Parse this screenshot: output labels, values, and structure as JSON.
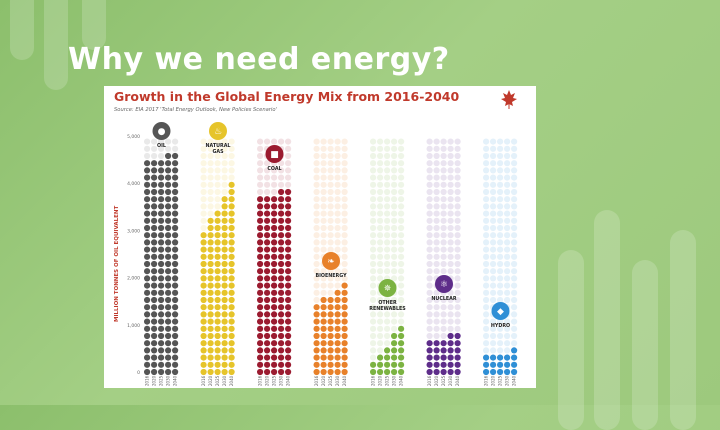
{
  "slide": {
    "title": "Why we need energy?"
  },
  "colors": {
    "background": "#9dc97d",
    "title": "#ffffff",
    "header": "#c0392b"
  },
  "icons": [
    "maple-leaf-icon",
    "oil-drop-icon",
    "flame-icon",
    "coal-icon",
    "leaf-icon",
    "sun-wind-icon",
    "atom-icon",
    "water-drop-icon"
  ],
  "chart_data": {
    "type": "bar",
    "title": "Growth in the Global Energy Mix from 2016-2040",
    "subtitle": "Source: EIA 2017 'Total Energy Outlook, New Policies Scenario'",
    "ylabel": "MILLION TONNES OF OIL EQUIVALENT",
    "yticks": [
      "5,000",
      "4,000",
      "3,000",
      "2,000",
      "1,000",
      "0"
    ],
    "ylim": [
      0,
      5000
    ],
    "grid": false,
    "series": [
      {
        "name": "OIL",
        "color": "#555555",
        "values": [
          4500,
          4520,
          4550,
          4580,
          4600
        ]
      },
      {
        "name": "NATURAL GAS",
        "color": "#e6c42a",
        "values": [
          3000,
          3250,
          3500,
          3750,
          4000
        ]
      },
      {
        "name": "COAL",
        "color": "#9b1b30",
        "values": [
          3800,
          3800,
          3810,
          3820,
          3830
        ]
      },
      {
        "name": "BIOENERGY",
        "color": "#e8812a",
        "values": [
          1450,
          1550,
          1650,
          1750,
          1850
        ]
      },
      {
        "name": "OTHER RENEWABLES",
        "color": "#7cb342",
        "values": [
          250,
          400,
          600,
          800,
          1050
        ]
      },
      {
        "name": "NUCLEAR",
        "color": "#5e2d8a",
        "values": [
          650,
          700,
          750,
          800,
          900
        ]
      },
      {
        "name": "HYDRO",
        "color": "#2f8fd6",
        "values": [
          350,
          380,
          410,
          440,
          480
        ]
      }
    ],
    "x_labels": [
      "2016",
      "2020",
      "2025",
      "2030",
      "2040"
    ]
  }
}
